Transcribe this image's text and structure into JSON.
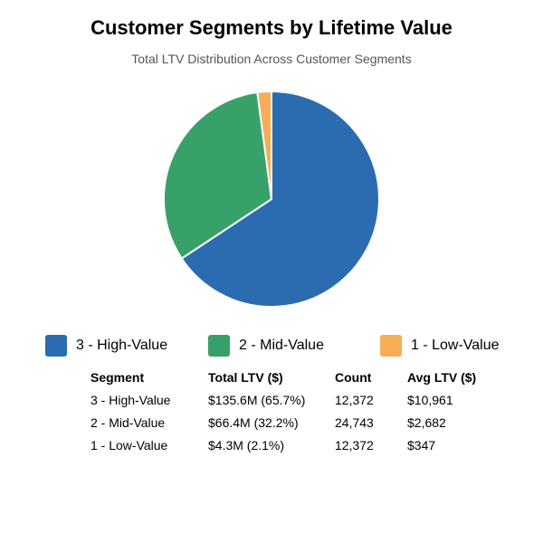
{
  "chart_data": {
    "type": "pie",
    "title": "Customer Segments by Lifetime Value",
    "subtitle": "Total LTV Distribution Across Customer Segments",
    "legend_position": "bottom",
    "slices": [
      {
        "label": "3 - High-Value",
        "value": 65.7,
        "color": "#2b6cb0"
      },
      {
        "label": "2 - Mid-Value",
        "value": 32.2,
        "color": "#38a169"
      },
      {
        "label": "1 - Low-Value",
        "value": 2.1,
        "color": "#f6ad55"
      }
    ]
  },
  "table": {
    "headers": [
      "Segment",
      "Total LTV ($)",
      "Count",
      "Avg LTV ($)"
    ],
    "rows": [
      [
        "3 - High-Value",
        "$135.6M (65.7%)",
        "12,372",
        "$10,961"
      ],
      [
        "2 - Mid-Value",
        "$66.4M (32.2%)",
        "24,743",
        "$2,682"
      ],
      [
        "1 - Low-Value",
        "$4.3M (2.1%)",
        "12,372",
        "$347"
      ]
    ]
  }
}
